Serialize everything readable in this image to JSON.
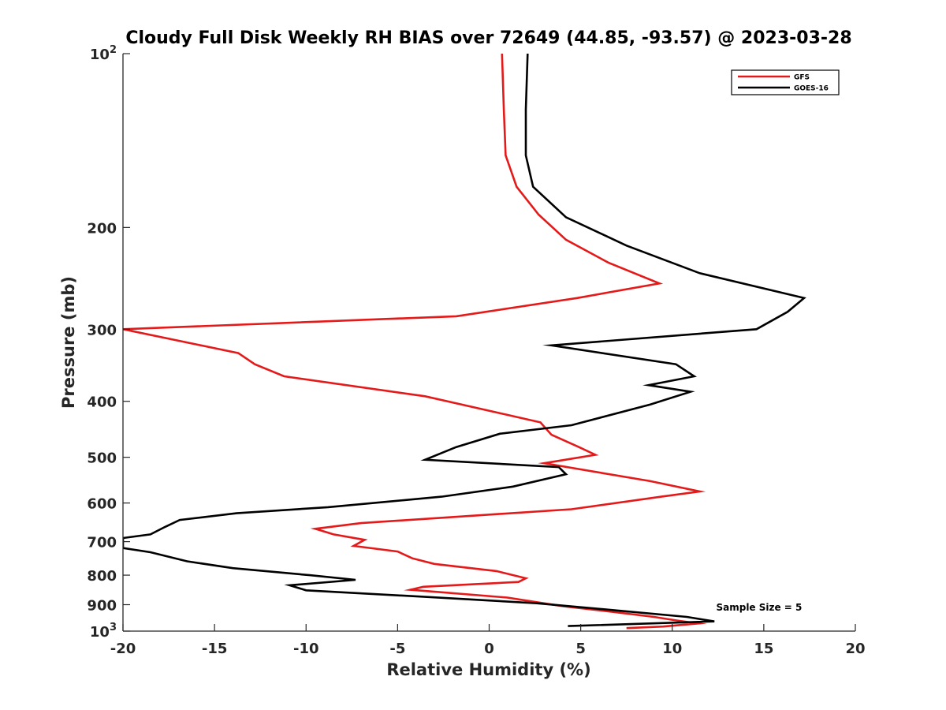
{
  "chart_data": {
    "type": "line",
    "title": "Cloudy Full Disk Weekly RH BIAS over 72649 (44.85, -93.57) @ 2023-03-28",
    "xlabel": "Relative Humidity (%)",
    "ylabel": "Pressure (mb)",
    "xlim": [
      -20,
      20
    ],
    "ylim": [
      100,
      1000
    ],
    "y_scale": "log",
    "y_reversed": true,
    "grid": false,
    "legend_position": "top-right",
    "x_ticks": [
      -20,
      -15,
      -10,
      -5,
      0,
      5,
      10,
      15,
      20
    ],
    "x_tick_labels": [
      "-20",
      "-15",
      "-10",
      "-5",
      "0",
      "5",
      "10",
      "15",
      "20"
    ],
    "y_ticks": [
      100,
      200,
      300,
      400,
      500,
      600,
      700,
      800,
      900,
      1000
    ],
    "y_tick_labels": [
      {
        "base": "10",
        "exp": "2"
      },
      {
        "base": "200",
        "exp": ""
      },
      {
        "base": "300",
        "exp": ""
      },
      {
        "base": "400",
        "exp": ""
      },
      {
        "base": "500",
        "exp": ""
      },
      {
        "base": "600",
        "exp": ""
      },
      {
        "base": "700",
        "exp": ""
      },
      {
        "base": "800",
        "exp": ""
      },
      {
        "base": "900",
        "exp": ""
      },
      {
        "base": "10",
        "exp": "3"
      }
    ],
    "annotations": [
      {
        "text": "Sample Size = 5",
        "x": 12.4,
        "y": 910
      }
    ],
    "series": [
      {
        "name": "GFS",
        "color": "#e41a1a",
        "points": [
          [
            0.7,
            100
          ],
          [
            0.8,
            125
          ],
          [
            0.9,
            150
          ],
          [
            1.5,
            170
          ],
          [
            2.7,
            190
          ],
          [
            4.2,
            210
          ],
          [
            6.5,
            230
          ],
          [
            9.3,
            250
          ],
          [
            4.8,
            265
          ],
          [
            -1.8,
            285
          ],
          [
            -20.0,
            300
          ],
          [
            -13.7,
            330
          ],
          [
            -12.8,
            345
          ],
          [
            -11.2,
            362
          ],
          [
            -3.5,
            392
          ],
          [
            2.8,
            435
          ],
          [
            3.4,
            457
          ],
          [
            4.9,
            480
          ],
          [
            5.8,
            495
          ],
          [
            3.0,
            512
          ],
          [
            8.8,
            550
          ],
          [
            11.5,
            573
          ],
          [
            9.4,
            585
          ],
          [
            4.5,
            615
          ],
          [
            -7.0,
            650
          ],
          [
            -9.5,
            665
          ],
          [
            -8.5,
            680
          ],
          [
            -6.8,
            695
          ],
          [
            -7.4,
            712
          ],
          [
            -5.0,
            728
          ],
          [
            -4.2,
            748
          ],
          [
            -3.0,
            765
          ],
          [
            0.4,
            787
          ],
          [
            2.0,
            810
          ],
          [
            1.6,
            822
          ],
          [
            -3.6,
            838
          ],
          [
            -4.3,
            848
          ],
          [
            1.0,
            875
          ],
          [
            2.0,
            885
          ],
          [
            4.0,
            905
          ],
          [
            6.6,
            925
          ],
          [
            9.0,
            945
          ],
          [
            10.2,
            958
          ],
          [
            11.4,
            970
          ],
          [
            9.5,
            982
          ],
          [
            7.5,
            988
          ]
        ]
      },
      {
        "name": "GOES-16",
        "color": "#000000",
        "points": [
          [
            2.1,
            100
          ],
          [
            2.0,
            125
          ],
          [
            2.0,
            150
          ],
          [
            2.4,
            170
          ],
          [
            4.2,
            192
          ],
          [
            7.5,
            215
          ],
          [
            11.5,
            240
          ],
          [
            17.2,
            265
          ],
          [
            16.3,
            280
          ],
          [
            14.6,
            300
          ],
          [
            3.4,
            320
          ],
          [
            10.2,
            345
          ],
          [
            11.2,
            362
          ],
          [
            8.7,
            375
          ],
          [
            11.0,
            385
          ],
          [
            8.8,
            405
          ],
          [
            4.5,
            440
          ],
          [
            0.6,
            455
          ],
          [
            -1.8,
            480
          ],
          [
            -3.5,
            505
          ],
          [
            3.8,
            520
          ],
          [
            4.2,
            535
          ],
          [
            1.3,
            562
          ],
          [
            -2.6,
            585
          ],
          [
            -8.8,
            610
          ],
          [
            -13.8,
            625
          ],
          [
            -16.9,
            642
          ],
          [
            -17.7,
            660
          ],
          [
            -18.5,
            680
          ],
          [
            -20.0,
            690
          ],
          [
            -20.0,
            718
          ],
          [
            -18.5,
            730
          ],
          [
            -16.5,
            757
          ],
          [
            -14.0,
            778
          ],
          [
            -9.8,
            800
          ],
          [
            -7.3,
            815
          ],
          [
            -10.9,
            833
          ],
          [
            -10.0,
            850
          ],
          [
            -3.3,
            873
          ],
          [
            2.6,
            895
          ],
          [
            6.5,
            918
          ],
          [
            10.8,
            945
          ],
          [
            12.3,
            962
          ],
          [
            4.3,
            980
          ]
        ]
      }
    ]
  }
}
